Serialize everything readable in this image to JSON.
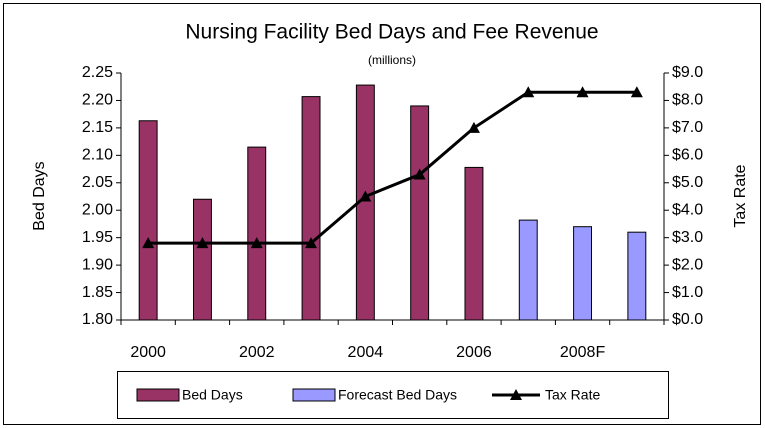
{
  "chart_data": {
    "type": "bar",
    "title": "Nursing Facility Bed Days and Fee Revenue",
    "subtitle": "(millions)",
    "y_label": "Bed Days",
    "y2_label": "Tax Rate",
    "categories": [
      "2000",
      null,
      "2002",
      null,
      "2004",
      null,
      "2006",
      null,
      "2008F",
      null
    ],
    "series": [
      {
        "name": "Bed Days",
        "type": "bar",
        "color": "#993366",
        "values": [
          2.163,
          2.02,
          2.115,
          2.207,
          2.228,
          2.19,
          2.078,
          null,
          null,
          null
        ]
      },
      {
        "name": "Forecast Bed Days",
        "type": "bar",
        "color": "#9999ff",
        "values": [
          null,
          null,
          null,
          null,
          null,
          null,
          null,
          1.982,
          1.97,
          1.96
        ]
      },
      {
        "name": "Tax Rate",
        "type": "line",
        "axis": "y2",
        "color": "#000000",
        "values": [
          2.8,
          2.8,
          2.8,
          2.8,
          4.5,
          5.3,
          7.0,
          8.3,
          8.3,
          8.3
        ]
      }
    ],
    "ylim": [
      1.8,
      2.25
    ],
    "yticks": [
      {
        "value": 1.8,
        "label": "1.80"
      },
      {
        "value": 1.85,
        "label": "1.85"
      },
      {
        "value": 1.9,
        "label": "1.90"
      },
      {
        "value": 1.95,
        "label": "1.95"
      },
      {
        "value": 2.0,
        "label": "2.00"
      },
      {
        "value": 2.05,
        "label": "2.05"
      },
      {
        "value": 2.1,
        "label": "2.10"
      },
      {
        "value": 2.15,
        "label": "2.15"
      },
      {
        "value": 2.2,
        "label": "2.20"
      },
      {
        "value": 2.25,
        "label": "2.25"
      }
    ],
    "y2lim": [
      0,
      9
    ],
    "y2ticks": [
      {
        "value": 0,
        "label": "$0.0"
      },
      {
        "value": 1,
        "label": "$1.0"
      },
      {
        "value": 2,
        "label": "$2.0"
      },
      {
        "value": 3,
        "label": "$3.0"
      },
      {
        "value": 4,
        "label": "$4.0"
      },
      {
        "value": 5,
        "label": "$5.0"
      },
      {
        "value": 6,
        "label": "$6.0"
      },
      {
        "value": 7,
        "label": "$7.0"
      },
      {
        "value": 8,
        "label": "$8.0"
      },
      {
        "value": 9,
        "label": "$9.0"
      }
    ],
    "grid": false,
    "legend": "bottom"
  }
}
